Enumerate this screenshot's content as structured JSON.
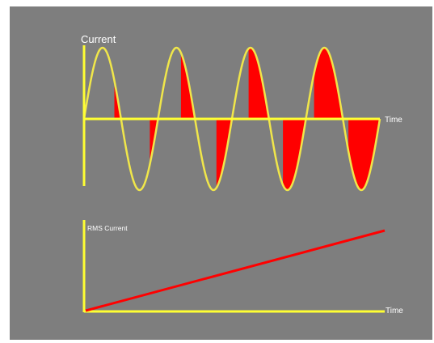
{
  "figure": {
    "background": "#7e7e7e",
    "border": "#ffffff",
    "axis_color": "#ffff33",
    "wave_color": "#f0e64a",
    "fill_color": "#ff0000",
    "rms_line_color": "#ff0000"
  },
  "top_chart": {
    "y_label": "Current",
    "x_label": "Time",
    "cycles": 4,
    "amplitude_trend": "constant",
    "shaded_fraction_trend": "increasing"
  },
  "bottom_chart": {
    "y_label": "RMS Current",
    "x_label": "Time",
    "trend": "linear increase"
  }
}
